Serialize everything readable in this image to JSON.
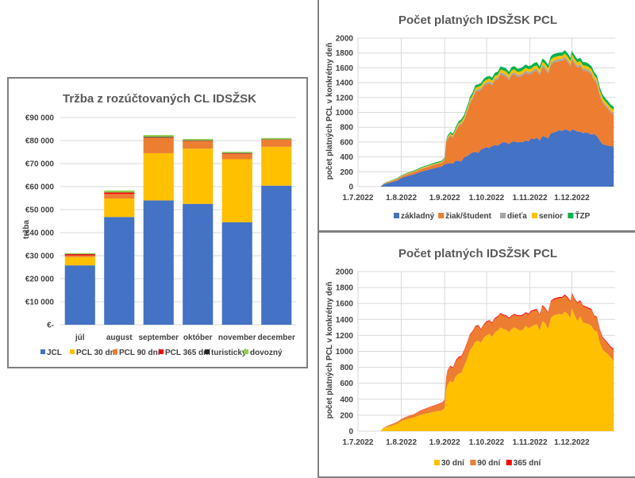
{
  "chart_data": [
    {
      "id": "revenue",
      "type": "bar",
      "stacked": true,
      "title": "Tržba z rozúčtovaných CL IDSŽSK",
      "xlabel": "",
      "ylabel": "tržba",
      "ylim": [
        0,
        90000
      ],
      "yticks": [
        0,
        10000,
        20000,
        30000,
        40000,
        50000,
        60000,
        70000,
        80000,
        90000
      ],
      "ytick_labels": [
        "€-",
        "€10 000",
        "€20 000",
        "€30 000",
        "€40 000",
        "€50 000",
        "€60 000",
        "€70 000",
        "€80 000",
        "€90 000"
      ],
      "grid": true,
      "legend": "bottom",
      "categories": [
        "júl",
        "august",
        "september",
        "október",
        "november",
        "december"
      ],
      "series": [
        {
          "name": "JCL",
          "color": "#4472C4",
          "values": [
            25800,
            46800,
            54000,
            52500,
            44500,
            60400
          ]
        },
        {
          "name": "PCL 30 dní",
          "color": "#FFC000",
          "values": [
            3600,
            8000,
            20500,
            24000,
            27400,
            16900
          ]
        },
        {
          "name": "PCL 90 dní",
          "color": "#ED7D31",
          "values": [
            700,
            2000,
            6700,
            3300,
            2300,
            3000
          ]
        },
        {
          "name": "PCL 365 dní",
          "color": "#FF0000",
          "values": [
            500,
            600,
            100,
            100,
            200,
            100
          ]
        },
        {
          "name": "turistický",
          "color": "#262626",
          "values": [
            100,
            100,
            300,
            200,
            200,
            100
          ]
        },
        {
          "name": "dovozný",
          "color": "#92D050",
          "values": [
            400,
            800,
            800,
            600,
            500,
            600
          ]
        }
      ]
    },
    {
      "id": "passes-by-type",
      "type": "area",
      "stacked": true,
      "title": "Počet platných IDSŽSK PCL",
      "xlabel": "",
      "ylabel": "počet platných PCL v konkrétny deň",
      "ylim": [
        0,
        2000
      ],
      "yticks": [
        0,
        200,
        400,
        600,
        800,
        1000,
        1200,
        1400,
        1600,
        1800,
        2000
      ],
      "xlim_days": [
        0,
        184
      ],
      "xticks_days": [
        0,
        31,
        62,
        92,
        123,
        153
      ],
      "xtick_labels": [
        "1.7.2022",
        "1.8.2022",
        "1.9.2022",
        "1.10.2022",
        "1.11.2022",
        "1.12.2022"
      ],
      "grid": true,
      "legend": "bottom",
      "x_days": [
        16,
        18,
        20,
        24,
        28,
        31,
        35,
        40,
        45,
        50,
        55,
        60,
        62,
        63,
        64,
        66,
        68,
        70,
        72,
        74,
        76,
        78,
        79,
        80,
        82,
        84,
        86,
        88,
        90,
        92,
        94,
        96,
        98,
        100,
        102,
        104,
        106,
        108,
        110,
        112,
        114,
        116,
        118,
        120,
        122,
        124,
        126,
        128,
        130,
        132,
        134,
        136,
        138,
        140,
        142,
        144,
        146,
        148,
        150,
        152,
        153,
        155,
        157,
        159,
        161,
        163,
        165,
        167,
        169,
        171,
        173,
        175,
        177,
        179,
        181,
        183
      ],
      "series": [
        {
          "name": "základný",
          "color": "#4472C4",
          "values": [
            0,
            25,
            40,
            60,
            80,
            115,
            140,
            165,
            200,
            225,
            250,
            270,
            300,
            305,
            310,
            315,
            310,
            350,
            345,
            340,
            395,
            410,
            420,
            440,
            460,
            465,
            455,
            500,
            515,
            530,
            520,
            545,
            560,
            550,
            580,
            600,
            590,
            575,
            600,
            610,
            595,
            600,
            600,
            620,
            610,
            650,
            640,
            660,
            620,
            680,
            670,
            650,
            720,
            730,
            740,
            760,
            750,
            770,
            760,
            740,
            770,
            760,
            740,
            740,
            720,
            730,
            720,
            700,
            710,
            680,
            620,
            570,
            560,
            550,
            545,
            540
          ]
        },
        {
          "name": "žiak/študent",
          "color": "#ED7D31",
          "values": [
            0,
            5,
            10,
            15,
            20,
            20,
            25,
            30,
            35,
            40,
            45,
            50,
            60,
            280,
            330,
            370,
            350,
            400,
            470,
            500,
            500,
            590,
            630,
            680,
            720,
            810,
            830,
            800,
            840,
            850,
            870,
            820,
            870,
            890,
            930,
            900,
            890,
            860,
            900,
            900,
            880,
            880,
            900,
            910,
            900,
            870,
            910,
            900,
            880,
            930,
            910,
            870,
            920,
            940,
            940,
            930,
            940,
            950,
            920,
            880,
            940,
            890,
            860,
            880,
            840,
            830,
            820,
            810,
            720,
            700,
            610,
            560,
            520,
            490,
            450,
            430
          ]
        },
        {
          "name": "dieťa",
          "color": "#A5A5A5",
          "values": [
            0,
            2,
            2,
            3,
            3,
            3,
            4,
            4,
            5,
            5,
            5,
            6,
            6,
            8,
            10,
            12,
            12,
            14,
            15,
            16,
            18,
            20,
            20,
            22,
            22,
            24,
            24,
            24,
            25,
            25,
            26,
            26,
            26,
            27,
            27,
            27,
            28,
            28,
            28,
            28,
            28,
            28,
            28,
            28,
            28,
            28,
            28,
            28,
            28,
            28,
            28,
            28,
            28,
            28,
            28,
            28,
            28,
            28,
            28,
            28,
            28,
            28,
            28,
            28,
            28,
            27,
            27,
            27,
            26,
            26,
            25,
            25,
            25,
            24,
            24,
            24
          ]
        },
        {
          "name": "senior",
          "color": "#FFC000",
          "values": [
            0,
            2,
            3,
            4,
            5,
            6,
            7,
            8,
            9,
            10,
            10,
            11,
            11,
            14,
            16,
            18,
            18,
            20,
            22,
            24,
            26,
            28,
            30,
            30,
            32,
            33,
            34,
            35,
            36,
            37,
            38,
            38,
            39,
            40,
            40,
            41,
            41,
            42,
            42,
            42,
            42,
            42,
            43,
            43,
            43,
            43,
            43,
            44,
            44,
            44,
            44,
            44,
            44,
            44,
            44,
            44,
            44,
            44,
            44,
            44,
            44,
            44,
            44,
            44,
            44,
            44,
            44,
            43,
            43,
            43,
            42,
            42,
            42,
            41,
            41,
            40
          ]
        },
        {
          "name": "ŤZP",
          "color": "#00B050",
          "values": [
            0,
            3,
            4,
            5,
            6,
            7,
            8,
            9,
            10,
            12,
            13,
            14,
            14,
            16,
            18,
            20,
            22,
            24,
            26,
            28,
            30,
            32,
            32,
            33,
            34,
            35,
            36,
            36,
            37,
            38,
            38,
            39,
            40,
            40,
            40,
            41,
            41,
            42,
            42,
            42,
            42,
            43,
            43,
            43,
            43,
            43,
            44,
            44,
            44,
            44,
            44,
            44,
            44,
            44,
            44,
            44,
            44,
            45,
            45,
            45,
            45,
            45,
            45,
            45,
            45,
            45,
            45,
            44,
            44,
            44,
            43,
            43,
            42,
            42,
            41,
            41
          ]
        }
      ]
    },
    {
      "id": "passes-by-validity",
      "type": "area",
      "stacked": true,
      "title": "Počet platných IDSŽSK PCL",
      "xlabel": "",
      "ylabel": "počet platných PCL v konkrétny deň",
      "ylim": [
        0,
        2000
      ],
      "yticks": [
        0,
        200,
        400,
        600,
        800,
        1000,
        1200,
        1400,
        1600,
        1800,
        2000
      ],
      "xlim_days": [
        0,
        184
      ],
      "xticks_days": [
        0,
        31,
        62,
        92,
        123,
        153
      ],
      "xtick_labels": [
        "1.7.2022",
        "1.8.2022",
        "1.9.2022",
        "1.10.2022",
        "1.11.2022",
        "1.12.2022"
      ],
      "grid": true,
      "legend": "bottom",
      "x_days": [
        16,
        18,
        20,
        24,
        28,
        31,
        35,
        40,
        45,
        50,
        55,
        60,
        62,
        63,
        64,
        66,
        68,
        70,
        72,
        74,
        76,
        78,
        79,
        80,
        82,
        84,
        86,
        88,
        90,
        92,
        94,
        96,
        98,
        100,
        102,
        104,
        106,
        108,
        110,
        112,
        114,
        116,
        118,
        120,
        122,
        124,
        126,
        128,
        130,
        132,
        134,
        136,
        138,
        140,
        142,
        144,
        146,
        148,
        150,
        152,
        153,
        155,
        157,
        159,
        161,
        163,
        165,
        167,
        169,
        171,
        173,
        175,
        177,
        179,
        181,
        183
      ],
      "series": [
        {
          "name": "30 dní",
          "color": "#FFC000",
          "values": [
            0,
            33,
            50,
            68,
            92,
            125,
            150,
            170,
            205,
            225,
            245,
            260,
            290,
            510,
            580,
            630,
            610,
            690,
            720,
            730,
            820,
            900,
            960,
            1010,
            1060,
            1120,
            1130,
            1110,
            1170,
            1200,
            1220,
            1180,
            1240,
            1260,
            1300,
            1280,
            1270,
            1240,
            1280,
            1300,
            1280,
            1260,
            1270,
            1320,
            1290,
            1310,
            1330,
            1340,
            1260,
            1380,
            1350,
            1280,
            1420,
            1450,
            1460,
            1470,
            1460,
            1500,
            1470,
            1420,
            1540,
            1450,
            1380,
            1440,
            1360,
            1350,
            1340,
            1320,
            1260,
            1250,
            1110,
            1020,
            990,
            960,
            920,
            880
          ]
        },
        {
          "name": "90 dní",
          "color": "#ED7D31",
          "values": [
            0,
            3,
            8,
            18,
            20,
            25,
            32,
            40,
            52,
            65,
            75,
            88,
            95,
            150,
            170,
            180,
            180,
            190,
            200,
            200,
            185,
            195,
            185,
            190,
            185,
            185,
            190,
            160,
            160,
            165,
            160,
            170,
            170,
            170,
            170,
            170,
            170,
            170,
            160,
            160,
            160,
            180,
            180,
            160,
            170,
            190,
            180,
            180,
            190,
            190,
            180,
            200,
            200,
            200,
            200,
            200,
            210,
            200,
            200,
            200,
            180,
            200,
            220,
            190,
            205,
            200,
            195,
            200,
            180,
            170,
            160,
            150,
            140,
            130,
            125,
            140
          ]
        },
        {
          "name": "365 dní",
          "color": "#FF0000",
          "values": [
            0,
            1,
            1,
            1,
            2,
            2,
            2,
            3,
            4,
            5,
            6,
            7,
            8,
            8,
            10,
            10,
            10,
            12,
            12,
            12,
            12,
            12,
            12,
            12,
            12,
            12,
            12,
            12,
            12,
            12,
            12,
            12,
            12,
            12,
            12,
            12,
            12,
            12,
            12,
            12,
            12,
            12,
            12,
            12,
            12,
            12,
            12,
            12,
            12,
            12,
            12,
            12,
            12,
            12,
            12,
            12,
            12,
            12,
            12,
            12,
            12,
            12,
            12,
            12,
            12,
            12,
            12,
            12,
            12,
            12,
            12,
            12,
            12,
            12,
            12,
            12
          ]
        }
      ]
    }
  ]
}
